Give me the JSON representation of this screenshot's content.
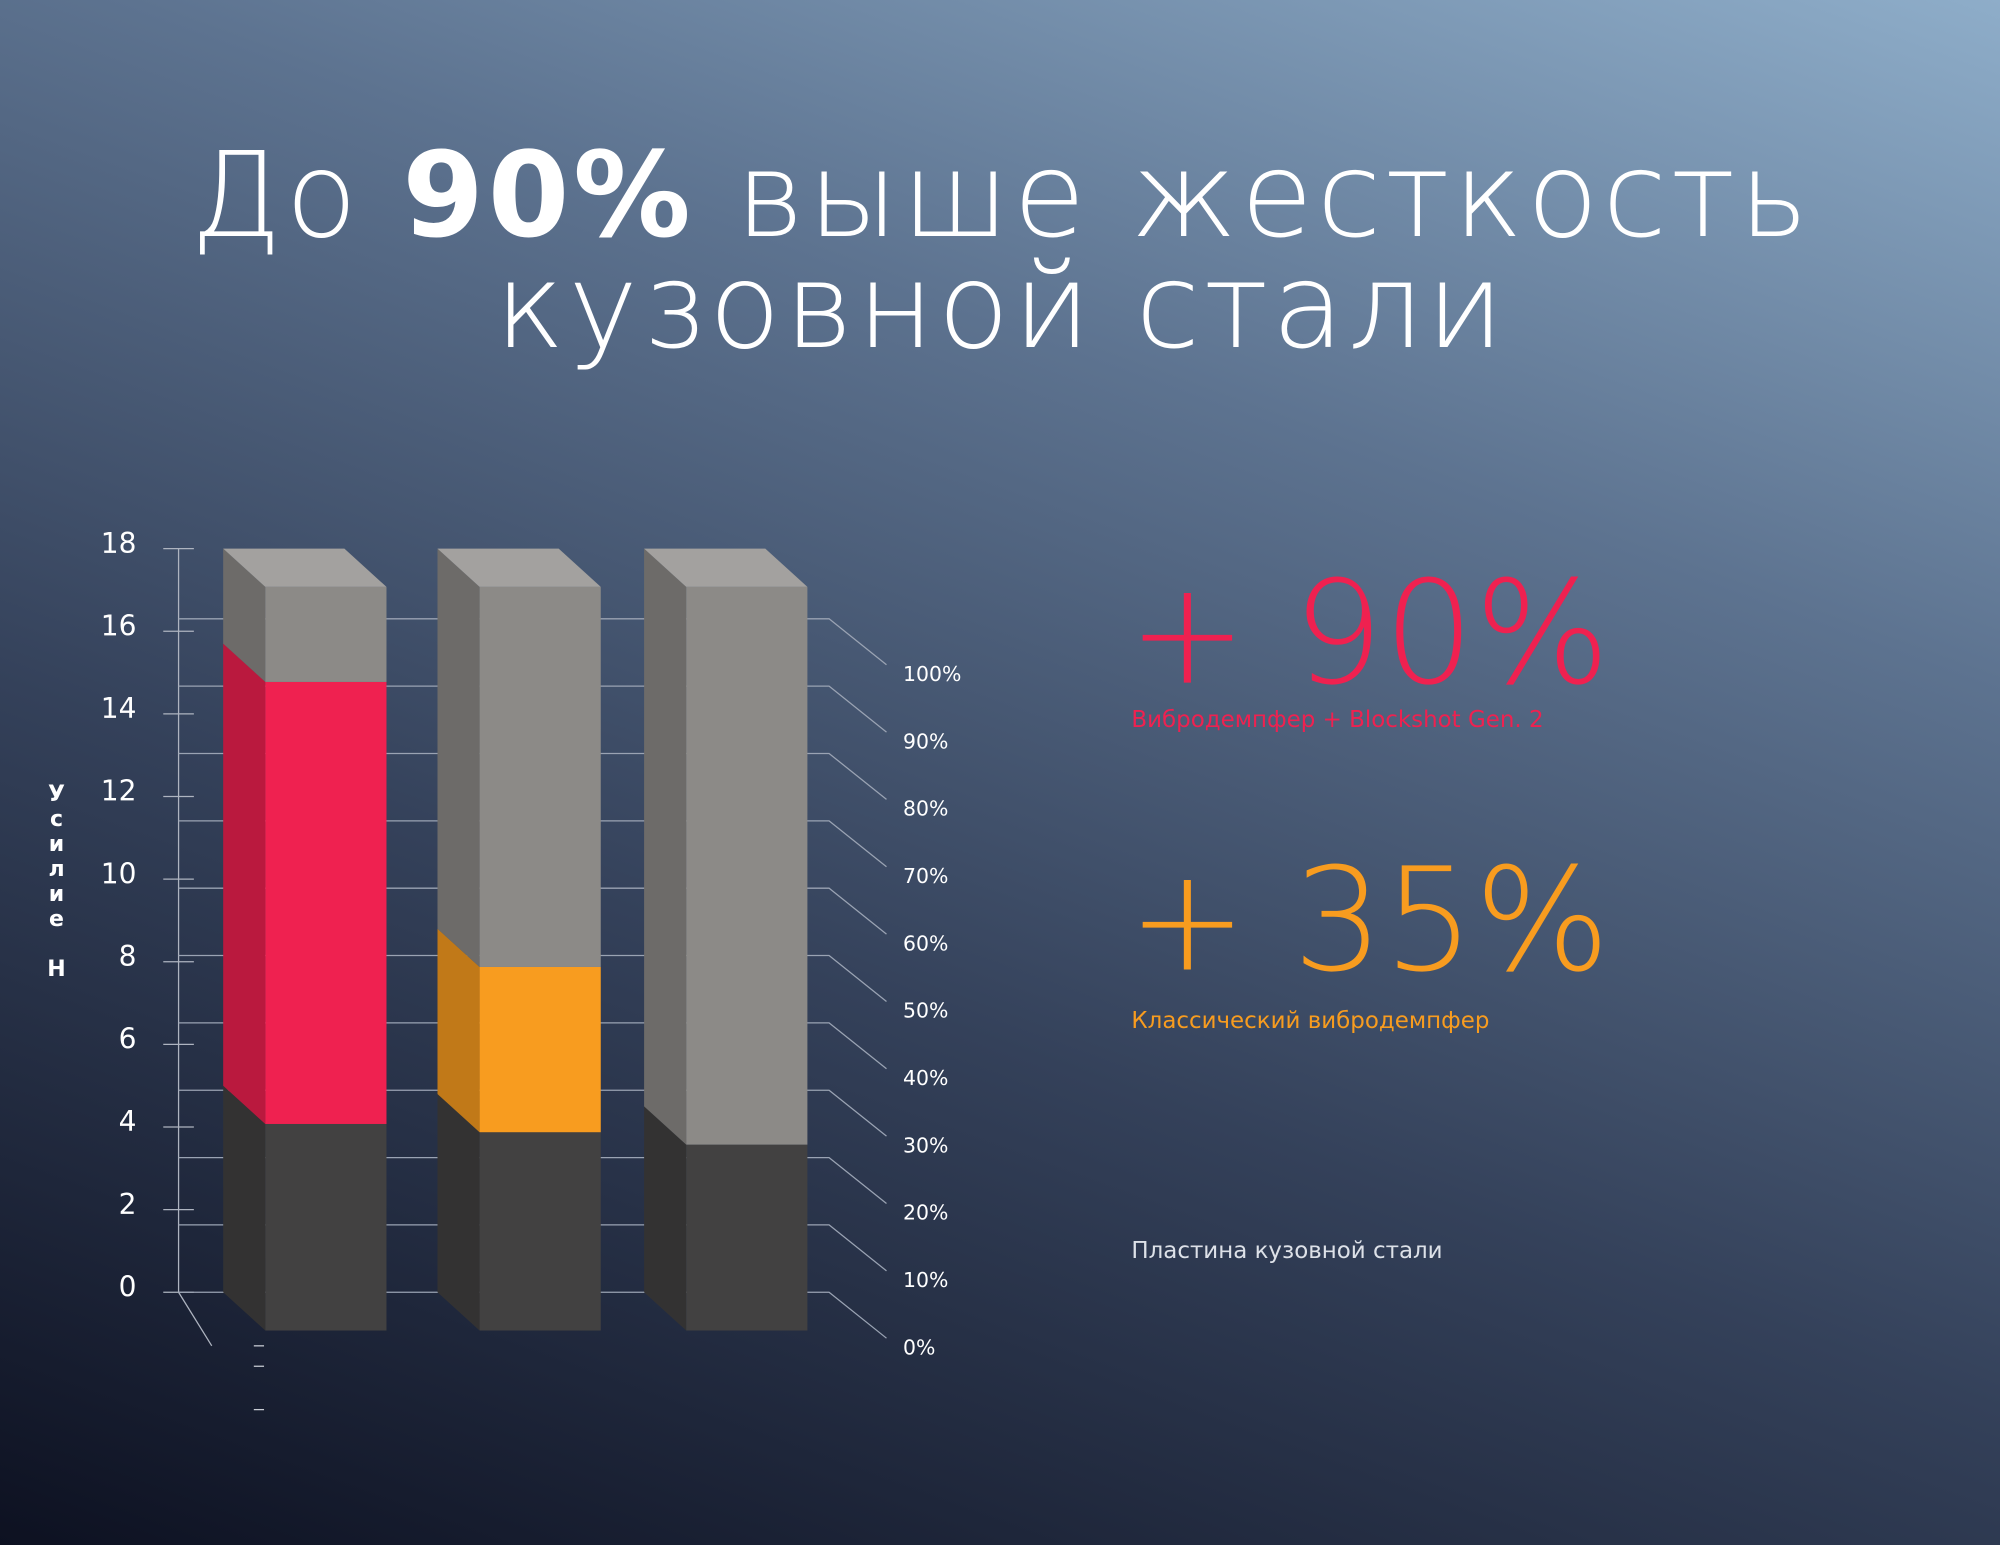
{
  "title": {
    "prefix": "До ",
    "highlight": "90%",
    "rest": " выше жесткость",
    "line2": "кузовной стали"
  },
  "chart_data": {
    "type": "bar3d_stacked",
    "y_label": "Усилие Н",
    "categories": [
      null,
      null,
      null
    ],
    "ylim": [
      0,
      18
    ],
    "yticks": [
      0,
      2,
      4,
      6,
      8,
      10,
      12,
      14,
      16,
      18
    ],
    "y2lim": [
      0,
      100
    ],
    "y2ticks": [
      {
        "value": 0,
        "label": "0%"
      },
      {
        "value": 10,
        "label": "10%"
      },
      {
        "value": 20,
        "label": "20%"
      },
      {
        "value": 30,
        "label": "30%"
      },
      {
        "value": 40,
        "label": "40%"
      },
      {
        "value": 50,
        "label": "50%"
      },
      {
        "value": 60,
        "label": "60%"
      },
      {
        "value": 70,
        "label": "70%"
      },
      {
        "value": 80,
        "label": "80%"
      },
      {
        "value": 90,
        "label": "90%"
      },
      {
        "value": 100,
        "label": "100%"
      }
    ],
    "grid": true,
    "remainder_color": "#8c8a87",
    "series": [
      {
        "name": "Пластина кузовной стали",
        "color": "#424141",
        "values": [
          5,
          4.8,
          4.5
        ]
      },
      {
        "name": "Вибродемпфер + Blockshot Gen. 2",
        "highlight": "+ 90%",
        "color": "#ef2150",
        "values": [
          10.7,
          null,
          null
        ]
      },
      {
        "name": "Классический вибродемпфер",
        "highlight": "+ 35%",
        "color": "#f89c1f",
        "values": [
          null,
          4.0,
          null
        ]
      }
    ]
  }
}
